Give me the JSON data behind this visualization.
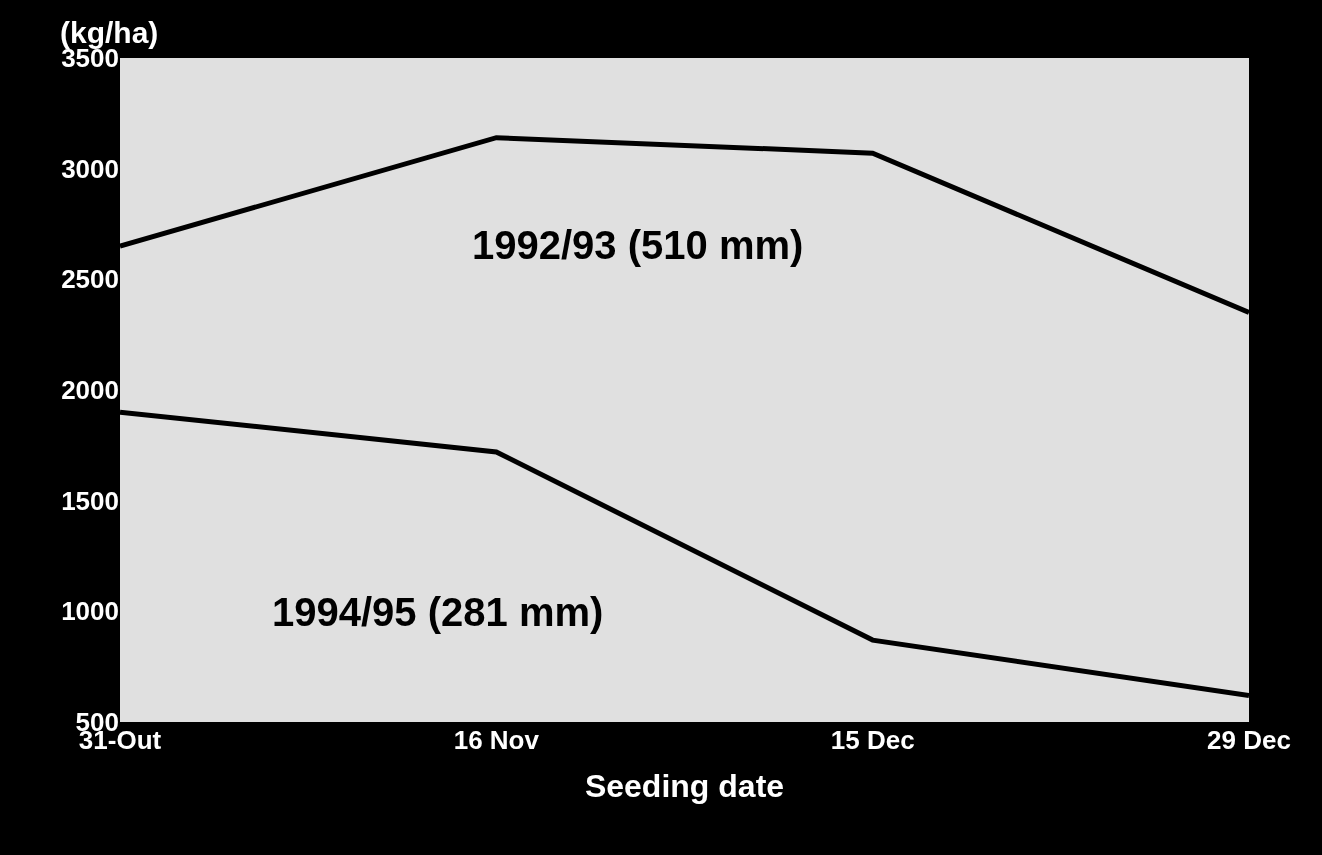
{
  "chart_data": {
    "type": "line",
    "xlabel": "Seeding date",
    "ylabel": "(kg/ha)",
    "categories": [
      "31-Out",
      "16 Nov",
      "15 Dec",
      "29 Dec"
    ],
    "series": [
      {
        "name": "1992/93 (510 mm)",
        "color": "#000000",
        "values": [
          2650,
          3140,
          3070,
          2350
        ]
      },
      {
        "name": "1994/95 (281 mm)",
        "color": "#000000",
        "values": [
          1900,
          1720,
          870,
          620
        ]
      }
    ],
    "ylim": [
      500,
      3500
    ],
    "yticks": [
      500,
      1000,
      1500,
      2000,
      2500,
      3000,
      3500
    ],
    "grid": false,
    "legend": false,
    "marker": "none",
    "line_style": "solid"
  }
}
